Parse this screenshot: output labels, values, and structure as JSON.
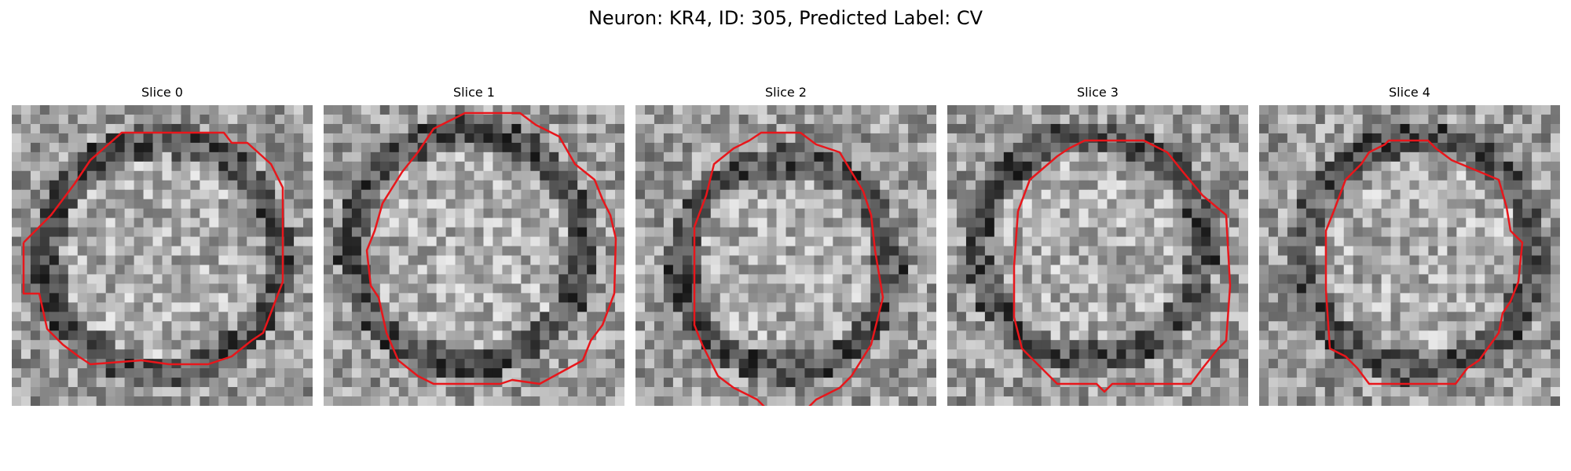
{
  "figure": {
    "title": "Neuron: KR4, ID: 305, Predicted Label: CV"
  },
  "panels": [
    {
      "title": "Slice 0",
      "seed": 11,
      "contour_color": "#e8161b"
    },
    {
      "title": "Slice 1",
      "seed": 23,
      "contour_color": "#e8161b"
    },
    {
      "title": "Slice 2",
      "seed": 37,
      "contour_color": "#e8161b"
    },
    {
      "title": "Slice 3",
      "seed": 51,
      "contour_color": "#e8161b"
    },
    {
      "title": "Slice 4",
      "seed": 67,
      "contour_color": "#e8161b"
    }
  ]
}
